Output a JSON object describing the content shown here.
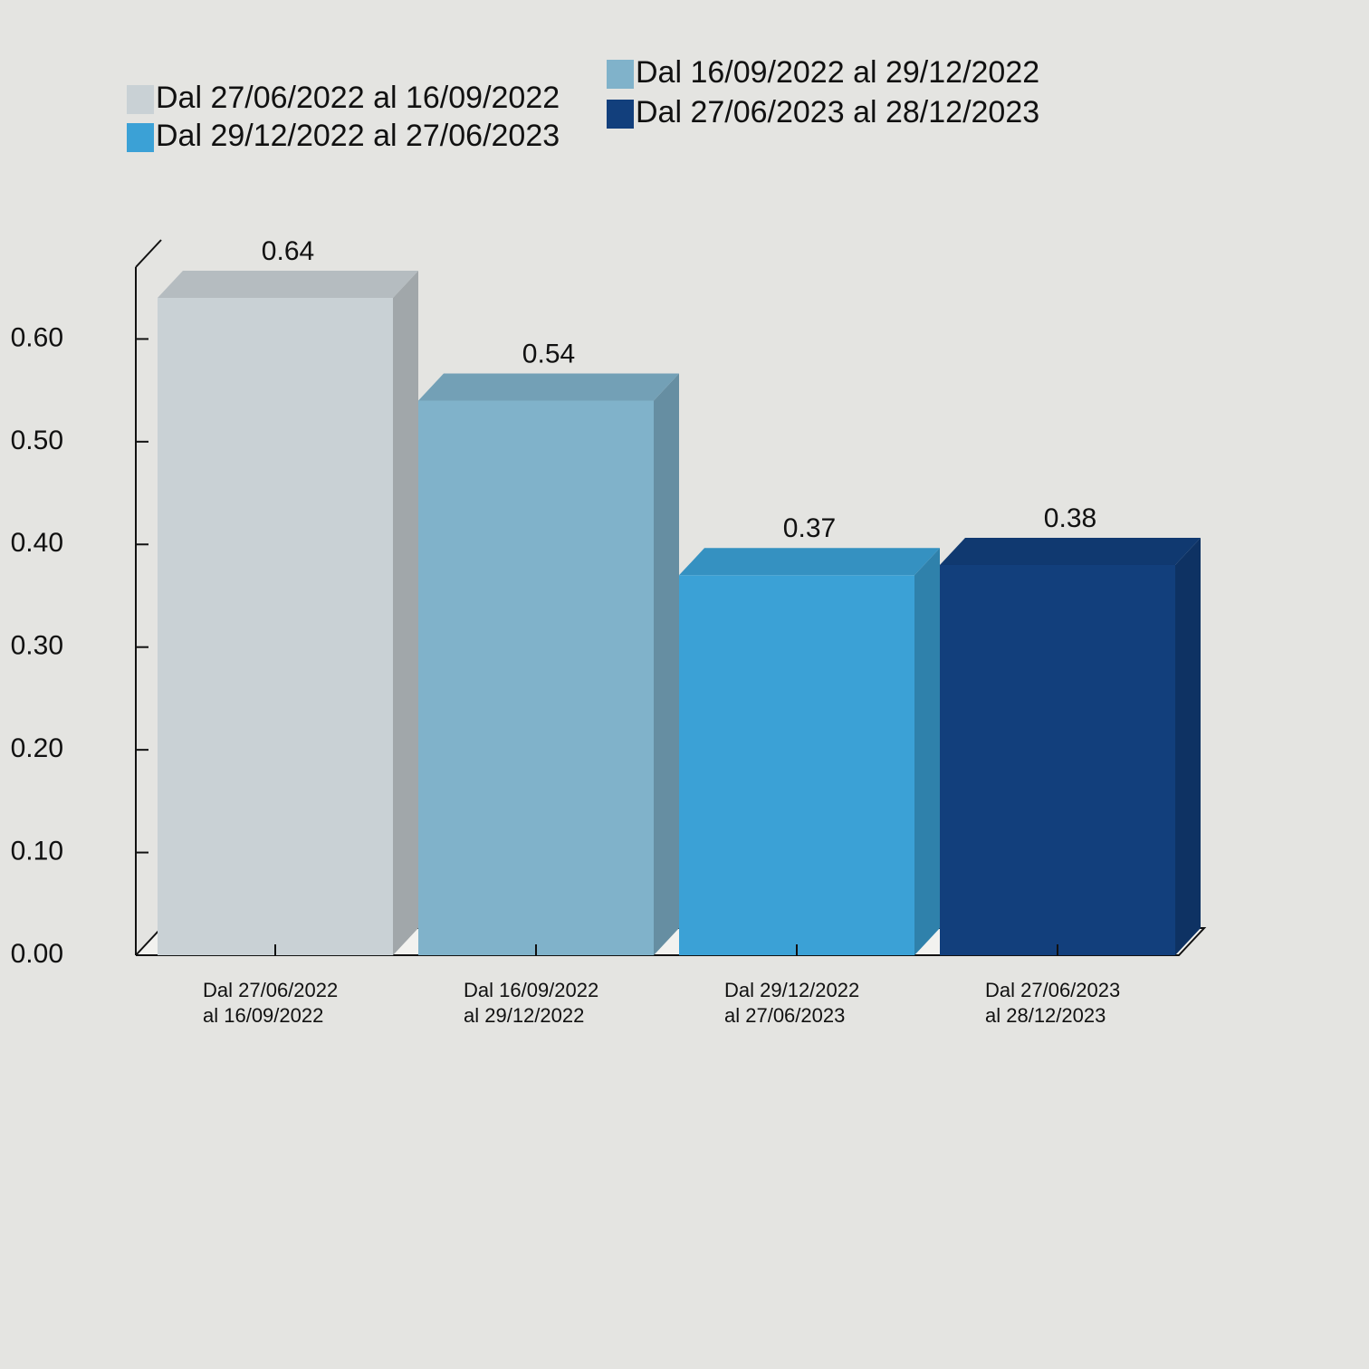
{
  "chart_data": {
    "type": "bar3d",
    "categories": [
      [
        "Dal 27/06/2022",
        "al 16/09/2022"
      ],
      [
        "Dal 16/09/2022",
        "al 29/12/2022"
      ],
      [
        "Dal 29/12/2022",
        "al 27/06/2023"
      ],
      [
        "Dal 27/06/2023",
        "al 28/12/2023"
      ]
    ],
    "values": [
      0.64,
      0.54,
      0.37,
      0.38
    ],
    "colors": [
      "#c9d1d5",
      "#80b2ca",
      "#3ba1d6",
      "#123f7c"
    ],
    "legend": [
      "Dal 27/06/2022 al 16/09/2022",
      "Dal 16/09/2022 al 29/12/2022",
      "Dal 29/12/2022 al 27/06/2023",
      "Dal 27/06/2023 al 28/12/2023"
    ],
    "ylim": [
      0,
      0.67
    ],
    "yticks": [
      {
        "value": 0,
        "label": "0.00"
      },
      {
        "value": 0.1,
        "label": "0.10"
      },
      {
        "value": 0.2,
        "label": "0.20"
      },
      {
        "value": 0.3,
        "label": "0.30"
      },
      {
        "value": 0.4,
        "label": "0.40"
      },
      {
        "value": 0.5,
        "label": "0.50"
      },
      {
        "value": 0.6,
        "label": "0.60"
      }
    ]
  }
}
